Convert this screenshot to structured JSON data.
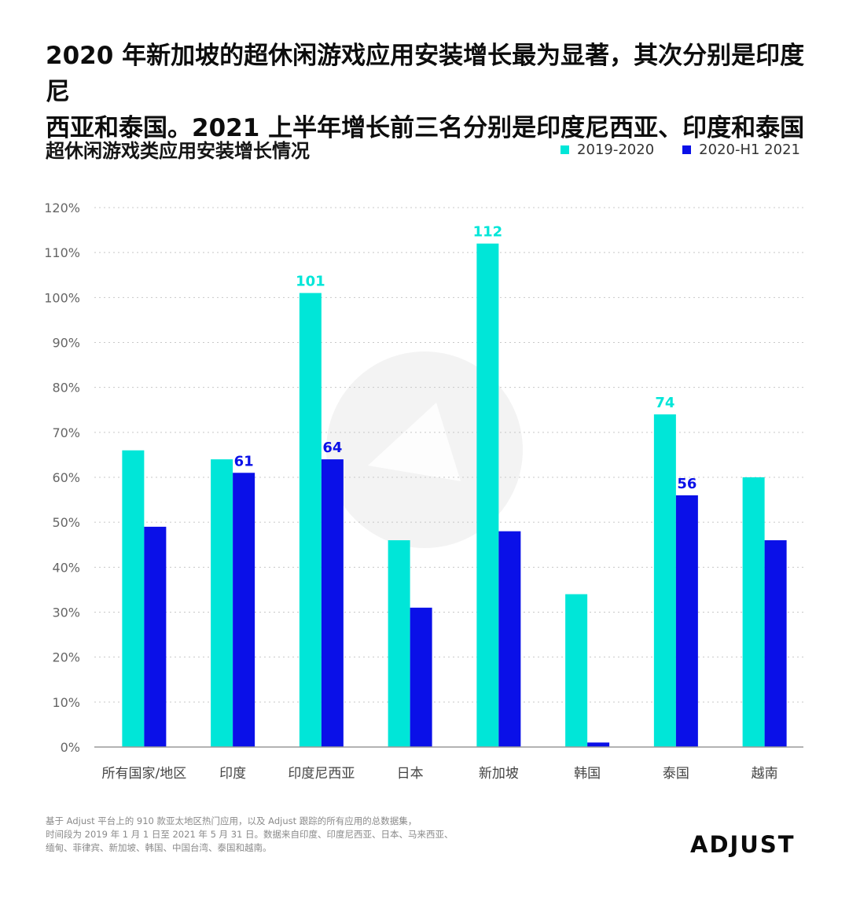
{
  "headline": {
    "line1": "2020 年新加坡的超休闲游戏应用安装增长最为显著，其次分别是印度尼",
    "line2": "西亚和泰国。2021 上半年增长前三名分别是印度尼西亚、印度和泰国"
  },
  "chart_data": {
    "type": "bar",
    "title": "超休闲游戏类应用安装增长情况",
    "xlabel": "",
    "ylabel": "",
    "ylim": [
      0,
      120
    ],
    "yticks": [
      0,
      10,
      20,
      30,
      40,
      50,
      60,
      70,
      80,
      90,
      100,
      110,
      120
    ],
    "ytick_labels": [
      "0%",
      "10%",
      "20%",
      "30%",
      "40%",
      "50%",
      "60%",
      "70%",
      "80%",
      "90%",
      "100%",
      "110%",
      "120%"
    ],
    "grid": true,
    "legend_position": "top-right",
    "categories": [
      "所有国家/地区",
      "印度",
      "印度尼西亚",
      "日本",
      "新加坡",
      "韩国",
      "泰国",
      "越南"
    ],
    "series": [
      {
        "name": "2019-2020",
        "color": "#00E6D8",
        "values": [
          66,
          64,
          101,
          46,
          112,
          34,
          74,
          60
        ],
        "labels": [
          "",
          "",
          "101",
          "",
          "112",
          "",
          "74",
          ""
        ]
      },
      {
        "name": "2020-H1 2021",
        "color": "#0A10E8",
        "values": [
          49,
          61,
          64,
          31,
          48,
          1,
          56,
          46
        ],
        "labels": [
          "",
          "61",
          "64",
          "",
          "",
          "",
          "56",
          ""
        ]
      }
    ]
  },
  "footnote": {
    "line1": "基于 Adjust 平台上的 910 款亚太地区热门应用，以及 Adjust 跟踪的所有应用的总数据集，",
    "line2": "时间段为 2019 年 1 月 1 日至 2021 年 5 月 31 日。数据来自印度、印度尼西亚、日本、马来西亚、",
    "line3": "缅甸、菲律宾、新加坡、韩国、中国台湾、泰国和越南。"
  },
  "brand": {
    "name": "ADJUST"
  },
  "colors": {
    "gridline": "#C8C8C8",
    "axis": "#9A9A9A",
    "tick_text": "#666666",
    "watermark": "#F3F3F3"
  }
}
